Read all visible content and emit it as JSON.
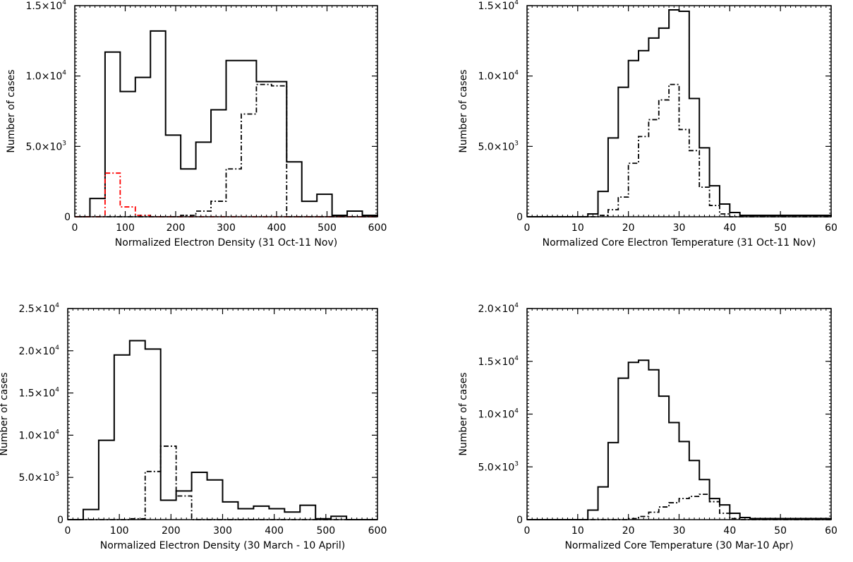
{
  "chart_data": [
    {
      "type": "histogram",
      "panel": "top-left",
      "xlabel": "Normalized Electron Density (31 Oct-11 Nov)",
      "ylabel": "Number of cases",
      "xlim": [
        0,
        600
      ],
      "ylim": [
        0,
        15000
      ],
      "xticks": [
        0,
        100,
        200,
        300,
        400,
        500,
        600
      ],
      "yticks": [
        {
          "value": 0,
          "label": "0"
        },
        {
          "value": 5000,
          "label": "5.0×10",
          "exp": "3"
        },
        {
          "value": 10000,
          "label": "1.0×10",
          "exp": "4"
        },
        {
          "value": 15000,
          "label": "1.5×10",
          "exp": "4"
        }
      ],
      "series": [
        {
          "style": "solid",
          "color": "#000000",
          "edges": [
            0,
            30,
            60,
            90,
            120,
            150,
            180,
            210,
            240,
            270,
            300,
            330,
            360,
            390,
            420,
            450,
            480,
            510,
            540,
            570,
            600
          ],
          "values": [
            0,
            1300,
            11700,
            8900,
            9900,
            13200,
            5800,
            3400,
            5300,
            7600,
            11100,
            11100,
            9600,
            9600,
            3900,
            1100,
            1600,
            100,
            400,
            100
          ]
        },
        {
          "style": "dashdot",
          "color": "#000000",
          "edges": [
            0,
            30,
            60,
            90,
            120,
            150,
            180,
            210,
            240,
            270,
            300,
            330,
            360,
            390,
            420,
            450,
            480,
            510,
            540,
            570,
            600
          ],
          "values": [
            0,
            0,
            0,
            0,
            0,
            0,
            0,
            100,
            400,
            1100,
            3400,
            7300,
            9400,
            9300,
            0,
            0,
            0,
            0,
            0,
            0
          ]
        },
        {
          "style": "dashdot",
          "color": "#ff0000",
          "edges": [
            0,
            30,
            60,
            90,
            120,
            150,
            180,
            210,
            240,
            270,
            300,
            330,
            360,
            390,
            420,
            450,
            480,
            510,
            540,
            570,
            600
          ],
          "values": [
            0,
            0,
            3100,
            700,
            100,
            0,
            0,
            0,
            0,
            0,
            0,
            0,
            0,
            0,
            0,
            0,
            0,
            0,
            0,
            0
          ]
        }
      ]
    },
    {
      "type": "histogram",
      "panel": "top-right",
      "xlabel": "Normalized Core Electron Temperature (31 Oct-11 Nov)",
      "ylabel": "Number of cases",
      "xlim": [
        0,
        60
      ],
      "ylim": [
        0,
        15000
      ],
      "xticks": [
        0,
        10,
        20,
        30,
        40,
        50,
        60
      ],
      "yticks": [
        {
          "value": 0,
          "label": "0"
        },
        {
          "value": 5000,
          "label": "5.0×10",
          "exp": "3"
        },
        {
          "value": 10000,
          "label": "1.0×10",
          "exp": "4"
        },
        {
          "value": 15000,
          "label": "1.5×10",
          "exp": "4"
        }
      ],
      "series": [
        {
          "style": "solid",
          "color": "#000000",
          "edges": [
            0,
            12,
            14,
            16,
            18,
            20,
            22,
            24,
            26,
            28,
            30,
            32,
            34,
            36,
            38,
            40,
            42,
            60
          ],
          "values": [
            0,
            200,
            1800,
            5600,
            9200,
            11100,
            11800,
            12700,
            13400,
            14700,
            14600,
            8400,
            4900,
            2200,
            900,
            300,
            100
          ]
        },
        {
          "style": "dashdot",
          "color": "#000000",
          "edges": [
            0,
            12,
            14,
            16,
            18,
            20,
            22,
            24,
            26,
            28,
            30,
            32,
            34,
            36,
            38,
            40,
            42,
            60
          ],
          "values": [
            0,
            0,
            100,
            500,
            1400,
            3800,
            5700,
            6900,
            8300,
            9400,
            6200,
            4700,
            2100,
            800,
            200,
            0,
            0
          ]
        }
      ]
    },
    {
      "type": "histogram",
      "panel": "bottom-left",
      "xlabel": "Normalized Electron Density (30 March - 10 April)",
      "ylabel": "Number of cases",
      "xlim": [
        0,
        600
      ],
      "ylim": [
        0,
        25000
      ],
      "xticks": [
        0,
        100,
        200,
        300,
        400,
        500,
        600
      ],
      "yticks": [
        {
          "value": 0,
          "label": "0"
        },
        {
          "value": 5000,
          "label": "5.0×10",
          "exp": "3"
        },
        {
          "value": 10000,
          "label": "1.0×10",
          "exp": "4"
        },
        {
          "value": 15000,
          "label": "1.5×10",
          "exp": "4"
        },
        {
          "value": 20000,
          "label": "2.0×10",
          "exp": "4"
        },
        {
          "value": 25000,
          "label": "2.5×10",
          "exp": "4"
        }
      ],
      "series": [
        {
          "style": "solid",
          "color": "#000000",
          "edges": [
            0,
            30,
            60,
            90,
            120,
            150,
            180,
            210,
            240,
            270,
            300,
            330,
            360,
            390,
            420,
            450,
            480,
            510,
            540,
            570,
            600
          ],
          "values": [
            0,
            1200,
            9400,
            19500,
            21200,
            20200,
            2300,
            3400,
            5600,
            4700,
            2100,
            1300,
            1600,
            1300,
            900,
            1700,
            100,
            400,
            0,
            0
          ]
        },
        {
          "style": "dashdot",
          "color": "#000000",
          "edges": [
            0,
            30,
            60,
            90,
            120,
            150,
            180,
            210,
            240,
            270,
            300,
            330,
            360,
            390,
            420,
            450,
            480,
            510,
            540,
            570,
            600
          ],
          "values": [
            0,
            0,
            0,
            0,
            100,
            5700,
            8700,
            2800,
            0,
            0,
            0,
            0,
            0,
            0,
            0,
            0,
            0,
            0,
            0,
            0
          ]
        }
      ]
    },
    {
      "type": "histogram",
      "panel": "bottom-right",
      "xlabel": "Normalized Core Temperature (30 Mar-10 Apr)",
      "ylabel": "Number of cases",
      "xlim": [
        0,
        60
      ],
      "ylim": [
        0,
        20000
      ],
      "xticks": [
        0,
        10,
        20,
        30,
        40,
        50,
        60
      ],
      "yticks": [
        {
          "value": 0,
          "label": "0"
        },
        {
          "value": 5000,
          "label": "5.0×10",
          "exp": "3"
        },
        {
          "value": 10000,
          "label": "1.0×10",
          "exp": "4"
        },
        {
          "value": 15000,
          "label": "1.5×10",
          "exp": "4"
        },
        {
          "value": 20000,
          "label": "2.0×10",
          "exp": "4"
        }
      ],
      "series": [
        {
          "style": "solid",
          "color": "#000000",
          "edges": [
            0,
            12,
            14,
            16,
            18,
            20,
            22,
            24,
            26,
            28,
            30,
            32,
            34,
            36,
            38,
            40,
            42,
            44,
            60
          ],
          "values": [
            0,
            900,
            3100,
            7300,
            13400,
            14900,
            15100,
            14200,
            11700,
            9200,
            7400,
            5600,
            3800,
            2000,
            1400,
            600,
            200,
            100
          ]
        },
        {
          "style": "dashdot",
          "color": "#000000",
          "edges": [
            0,
            12,
            14,
            16,
            18,
            20,
            22,
            24,
            26,
            28,
            30,
            32,
            34,
            36,
            38,
            40,
            42,
            44,
            60
          ],
          "values": [
            0,
            0,
            0,
            0,
            0,
            100,
            300,
            700,
            1200,
            1600,
            2000,
            2200,
            2400,
            1700,
            600,
            100,
            0,
            0
          ]
        }
      ]
    }
  ]
}
